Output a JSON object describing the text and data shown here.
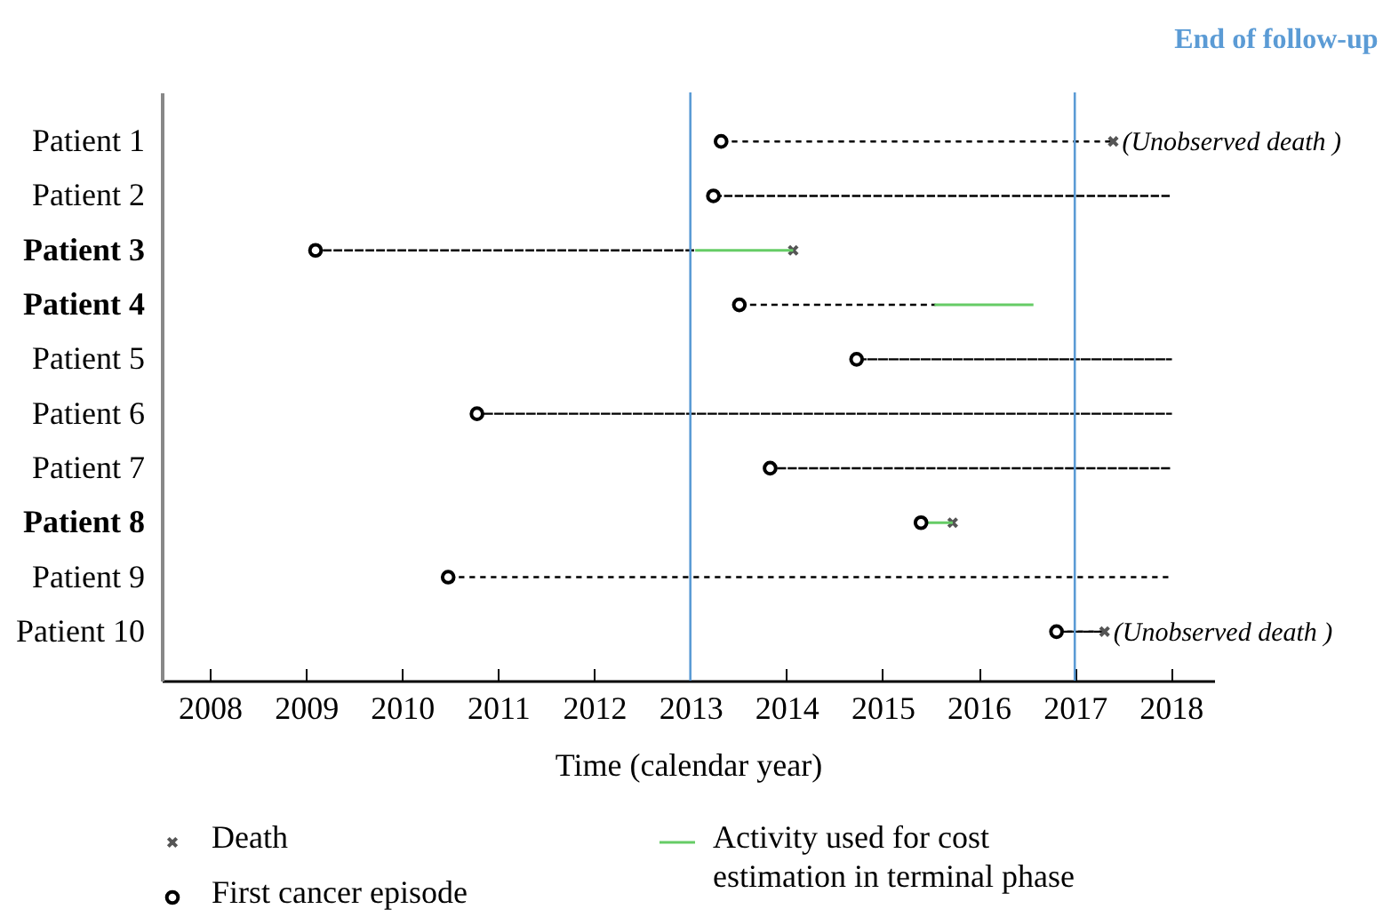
{
  "chart_data": {
    "type": "scatter",
    "orientation": "horizontal",
    "xlabel": "Time (calendar year)",
    "categories": [
      "Patient 1",
      "Patient 2",
      "Patient 3",
      "Patient 4",
      "Patient 5",
      "Patient 6",
      "Patient 7",
      "Patient 8",
      "Patient 9",
      "Patient 10"
    ],
    "xlim": [
      2007.5,
      2018.45
    ],
    "xticks": [
      2008,
      2009,
      2010,
      2011,
      2012,
      2013,
      2014,
      2015,
      2016,
      2017,
      2018
    ],
    "series": [
      {
        "type": "bar",
        "color": "#000000",
        "line_style": "dashed",
        "base": [
          2013.32,
          2013.24,
          2009.1,
          2013.51,
          2014.73,
          2010.78,
          2013.83,
          null,
          2010.48,
          2016.81
        ],
        "values": [
          4.08,
          4.76,
          3.95,
          2.03,
          3.27,
          7.22,
          4.17,
          null,
          7.52,
          0.5
        ]
      },
      {
        "name": "Death",
        "marker": "cross",
        "color": "#555555",
        "values": [
          2017.4,
          null,
          2014.07,
          null,
          null,
          null,
          null,
          2015.73,
          null,
          2017.31
        ]
      },
      {
        "name": "Activity used for cost estimation in terminal phase",
        "type": "bar",
        "color": "#66cc66",
        "line_style": "solid",
        "base": [
          null,
          null,
          2013.05,
          2015.54,
          null,
          null,
          null,
          2015.4,
          null,
          null
        ],
        "values": [
          null,
          null,
          1.02,
          1.03,
          null,
          null,
          null,
          0.33,
          null,
          null
        ]
      },
      {
        "name": "First cancer episode",
        "marker": "circle",
        "color": "#000000",
        "values": [
          2013.32,
          2013.24,
          2009.1,
          2013.51,
          2014.73,
          2010.78,
          2013.83,
          2015.4,
          2010.48,
          2016.81
        ]
      }
    ],
    "ref_lines": [
      {
        "axis": "x",
        "value": 2013,
        "color": "#5b9bd5"
      },
      {
        "axis": "x",
        "value": 2017,
        "label": "End of follow-up",
        "color": "#5b9bd5"
      }
    ],
    "annotations": [
      {
        "text": "(Unobserved death )",
        "x": 2017.4,
        "y": "Patient 1"
      },
      {
        "text": "(Unobserved death )",
        "x": 2017.31,
        "y": "Patient 10"
      }
    ],
    "legend": "bottom",
    "grid": false
  }
}
